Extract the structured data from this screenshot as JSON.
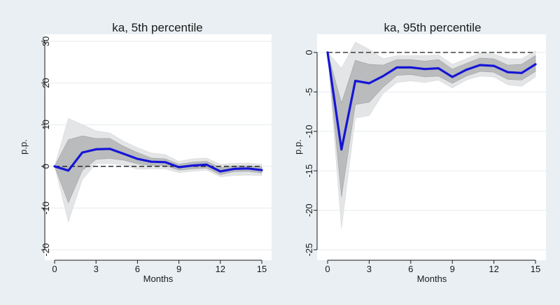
{
  "chart_data": [
    {
      "type": "line",
      "title": "ka, 5th percentile",
      "xlabel": "Months",
      "ylabel": "p.p.",
      "xlim": [
        0,
        15
      ],
      "ylim": [
        -20,
        30
      ],
      "xticks": [
        "0",
        "3",
        "6",
        "9",
        "12",
        "15"
      ],
      "yticks": [
        "-20",
        "-10",
        "0",
        "10",
        "20",
        "30"
      ],
      "grid": true,
      "legend": "none",
      "reference_line": 0,
      "x": [
        0,
        1,
        2,
        3,
        4,
        5,
        6,
        7,
        8,
        9,
        10,
        11,
        12,
        13,
        14,
        15
      ],
      "series": [
        {
          "values": [
            0,
            -1.0,
            3.3,
            4.1,
            4.2,
            3.0,
            1.8,
            1.1,
            1.0,
            -0.2,
            0.2,
            0.4,
            -1.2,
            -0.6,
            -0.5,
            -0.9
          ]
        }
      ],
      "band_outer": {
        "upper": [
          0,
          11.5,
          10.0,
          8.5,
          8.0,
          6.0,
          4.5,
          3.2,
          2.8,
          1.2,
          1.8,
          2.0,
          0.5,
          0.7,
          0.8,
          0.5
        ],
        "lower": [
          0,
          -13.3,
          -3.2,
          0.7,
          0.7,
          0.3,
          -0.7,
          -0.6,
          -0.6,
          -1.5,
          -1.2,
          -0.9,
          -2.5,
          -2.2,
          -2.1,
          -2.2
        ]
      },
      "band_inner": {
        "upper": [
          0,
          6.4,
          7.3,
          6.7,
          6.7,
          4.8,
          3.3,
          2.0,
          1.8,
          0.5,
          1.0,
          1.2,
          -0.3,
          0.1,
          0.1,
          -0.1
        ],
        "lower": [
          0,
          -8.7,
          -1.0,
          1.7,
          1.9,
          1.5,
          0.6,
          0.2,
          0.2,
          -0.9,
          -0.6,
          -0.4,
          -2.0,
          -1.3,
          -1.2,
          -1.6
        ]
      },
      "colors": {
        "line": "#1515d6",
        "band_outer": "#e3e5e7",
        "band_inner": "#b9bbbd",
        "reference": "#1a1a1a"
      }
    },
    {
      "type": "line",
      "title": "ka, 95th percentile",
      "xlabel": "Months",
      "ylabel": "p.p.",
      "xlim": [
        0,
        15
      ],
      "ylim": [
        -25,
        0
      ],
      "xticks": [
        "0",
        "3",
        "6",
        "9",
        "12",
        "15"
      ],
      "yticks": [
        "-25",
        "-20",
        "-15",
        "-10",
        "-5",
        "0"
      ],
      "grid": true,
      "legend": "none",
      "reference_line": 0,
      "x": [
        0,
        1,
        2,
        3,
        4,
        5,
        6,
        7,
        8,
        9,
        10,
        11,
        12,
        13,
        14,
        15
      ],
      "series": [
        {
          "values": [
            0,
            -12.3,
            -3.6,
            -3.9,
            -3.0,
            -1.9,
            -1.9,
            -2.1,
            -2.0,
            -3.1,
            -2.2,
            -1.6,
            -1.7,
            -2.5,
            -2.6,
            -1.5
          ]
        }
      ],
      "band_outer": {
        "upper": [
          0,
          -2.0,
          1.3,
          0.4,
          -0.8,
          -0.4,
          -0.4,
          -0.4,
          -0.3,
          -1.5,
          -0.8,
          -0.1,
          -0.2,
          -0.8,
          -0.8,
          0.2
        ],
        "lower": [
          0,
          -22.3,
          -8.3,
          -8.0,
          -5.2,
          -3.8,
          -3.6,
          -3.8,
          -3.5,
          -4.5,
          -3.5,
          -3.0,
          -3.1,
          -4.1,
          -4.3,
          -3.1
        ]
      },
      "band_inner": {
        "upper": [
          0,
          -6.4,
          -1.0,
          -1.5,
          -1.6,
          -0.9,
          -0.9,
          -1.1,
          -0.9,
          -2.1,
          -1.4,
          -0.7,
          -0.8,
          -1.6,
          -1.5,
          -0.4
        ],
        "lower": [
          0,
          -18.3,
          -6.6,
          -6.3,
          -4.4,
          -2.9,
          -2.8,
          -3.1,
          -3.0,
          -3.9,
          -3.0,
          -2.4,
          -2.5,
          -3.4,
          -3.5,
          -2.4
        ]
      },
      "colors": {
        "line": "#1515d6",
        "band_outer": "#e3e5e7",
        "band_inner": "#b9bbbd",
        "reference": "#1a1a1a"
      }
    }
  ]
}
